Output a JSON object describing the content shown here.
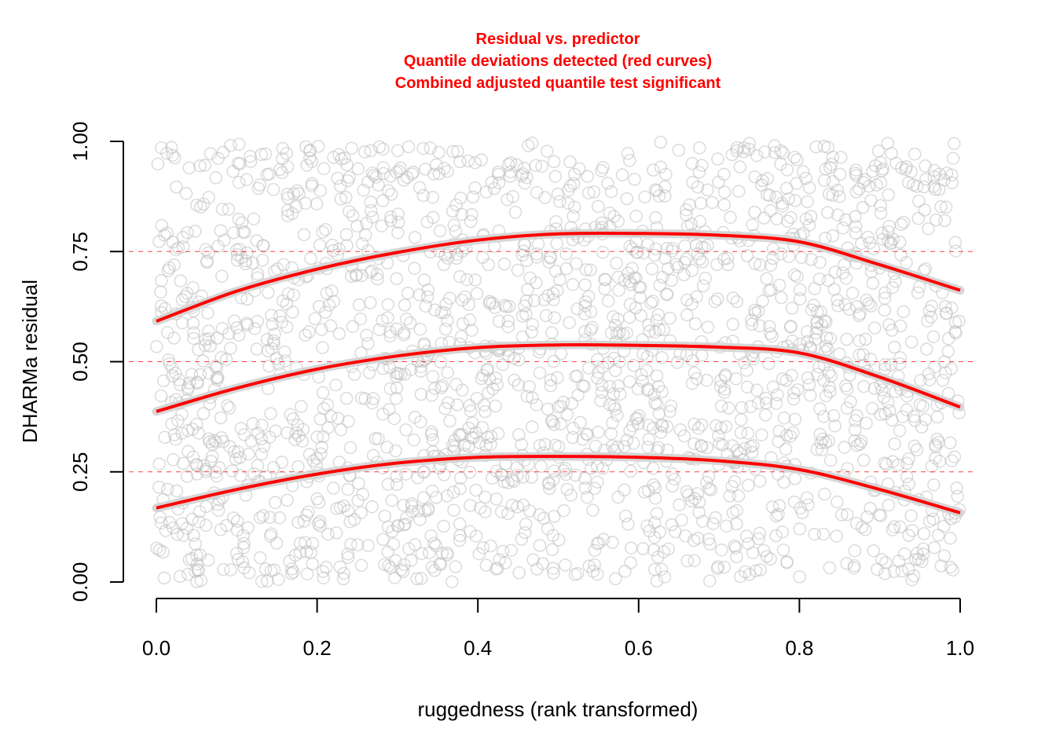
{
  "chart_data": {
    "type": "scatter",
    "title_lines": [
      "Residual vs. predictor",
      "Quantile deviations detected (red curves)",
      "Combined adjusted quantile test significant"
    ],
    "xlabel": "ruggedness (rank transformed)",
    "ylabel": "DHARMa residual",
    "xlim": [
      0,
      1
    ],
    "ylim": [
      0,
      1
    ],
    "x_ticks": [
      "0.0",
      "0.2",
      "0.4",
      "0.6",
      "0.8",
      "1.0"
    ],
    "x_tick_values": [
      0,
      0.2,
      0.4,
      0.6,
      0.8,
      1.0
    ],
    "y_ticks": [
      "0.00",
      "0.25",
      "0.50",
      "0.75",
      "1.00"
    ],
    "y_tick_values": [
      0,
      0.25,
      0.5,
      0.75,
      1.0
    ],
    "reference_lines": [
      0.25,
      0.5,
      0.75
    ],
    "point_count": 2000,
    "point_distribution": "uniform",
    "quantile_curves": [
      {
        "quantile": 0.25,
        "x": [
          0,
          0.1,
          0.2,
          0.3,
          0.4,
          0.5,
          0.6,
          0.7,
          0.8,
          0.9,
          1.0
        ],
        "y": [
          0.168,
          0.21,
          0.245,
          0.27,
          0.283,
          0.285,
          0.283,
          0.275,
          0.255,
          0.21,
          0.157
        ]
      },
      {
        "quantile": 0.5,
        "x": [
          0,
          0.1,
          0.2,
          0.3,
          0.4,
          0.5,
          0.6,
          0.7,
          0.8,
          0.9,
          1.0
        ],
        "y": [
          0.387,
          0.44,
          0.483,
          0.513,
          0.532,
          0.538,
          0.537,
          0.533,
          0.52,
          0.465,
          0.397
        ]
      },
      {
        "quantile": 0.75,
        "x": [
          0,
          0.1,
          0.2,
          0.3,
          0.4,
          0.5,
          0.6,
          0.7,
          0.8,
          0.9,
          1.0
        ],
        "y": [
          0.592,
          0.66,
          0.71,
          0.748,
          0.776,
          0.79,
          0.791,
          0.787,
          0.772,
          0.72,
          0.662
        ]
      }
    ],
    "colors": {
      "curve": "#ff0000",
      "points": "#bebebe",
      "band": "#d3d3d3",
      "reference": "#ff0000"
    }
  }
}
